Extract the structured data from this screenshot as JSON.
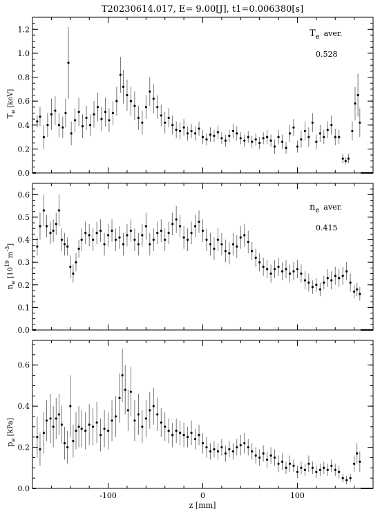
{
  "title": "T20230614.017, E= 9.00[J], t1=0.006380[s]",
  "xlabel": "z [mm]",
  "x_ticks": [
    "-100",
    "0",
    "100"
  ],
  "chart_data": [
    {
      "type": "scatter",
      "name": "Te",
      "ylabel_main": "T",
      "ylabel_sub": "e",
      "ylabel_unit": "[keV]",
      "ylim": [
        0.0,
        1.3
      ],
      "y_ticks": [
        "0.0",
        "0.2",
        "0.4",
        "0.6",
        "0.8",
        "1.0",
        "1.2"
      ],
      "annotation_main": "T",
      "annotation_sub": "e",
      "annotation_rest": "aver.",
      "annotation_value": "0.528",
      "points": [
        [
          -175,
          0.43,
          0.05
        ],
        [
          -172,
          0.47,
          0.08
        ],
        [
          -168,
          0.3,
          0.1
        ],
        [
          -164,
          0.4,
          0.1
        ],
        [
          -160,
          0.49,
          0.13
        ],
        [
          -156,
          0.52,
          0.12
        ],
        [
          -152,
          0.4,
          0.1
        ],
        [
          -148,
          0.38,
          0.09
        ],
        [
          -145,
          0.5,
          0.12
        ],
        [
          -142,
          0.92,
          0.3
        ],
        [
          -139,
          0.33,
          0.1
        ],
        [
          -135,
          0.44,
          0.1
        ],
        [
          -131,
          0.51,
          0.12
        ],
        [
          -127,
          0.39,
          0.1
        ],
        [
          -123,
          0.46,
          0.1
        ],
        [
          -119,
          0.4,
          0.09
        ],
        [
          -115,
          0.49,
          0.11
        ],
        [
          -111,
          0.55,
          0.12
        ],
        [
          -107,
          0.45,
          0.1
        ],
        [
          -103,
          0.51,
          0.12
        ],
        [
          -99,
          0.44,
          0.1
        ],
        [
          -95,
          0.5,
          0.1
        ],
        [
          -91,
          0.6,
          0.12
        ],
        [
          -87,
          0.82,
          0.15
        ],
        [
          -84,
          0.72,
          0.14
        ],
        [
          -80,
          0.65,
          0.13
        ],
        [
          -76,
          0.6,
          0.12
        ],
        [
          -72,
          0.56,
          0.12
        ],
        [
          -68,
          0.46,
          0.1
        ],
        [
          -64,
          0.42,
          0.1
        ],
        [
          -60,
          0.55,
          0.1
        ],
        [
          -56,
          0.68,
          0.12
        ],
        [
          -52,
          0.62,
          0.12
        ],
        [
          -48,
          0.55,
          0.1
        ],
        [
          -44,
          0.48,
          0.09
        ],
        [
          -40,
          0.42,
          0.09
        ],
        [
          -36,
          0.46,
          0.08
        ],
        [
          -32,
          0.4,
          0.08
        ],
        [
          -28,
          0.36,
          0.07
        ],
        [
          -24,
          0.35,
          0.07
        ],
        [
          -20,
          0.38,
          0.07
        ],
        [
          -16,
          0.33,
          0.06
        ],
        [
          -12,
          0.35,
          0.06
        ],
        [
          -8,
          0.33,
          0.06
        ],
        [
          -4,
          0.37,
          0.06
        ],
        [
          0,
          0.3,
          0.06
        ],
        [
          4,
          0.28,
          0.05
        ],
        [
          8,
          0.32,
          0.06
        ],
        [
          12,
          0.31,
          0.05
        ],
        [
          16,
          0.34,
          0.06
        ],
        [
          20,
          0.29,
          0.05
        ],
        [
          24,
          0.27,
          0.05
        ],
        [
          28,
          0.31,
          0.05
        ],
        [
          32,
          0.35,
          0.06
        ],
        [
          36,
          0.33,
          0.06
        ],
        [
          40,
          0.29,
          0.05
        ],
        [
          44,
          0.27,
          0.05
        ],
        [
          48,
          0.3,
          0.05
        ],
        [
          52,
          0.26,
          0.05
        ],
        [
          56,
          0.28,
          0.05
        ],
        [
          60,
          0.25,
          0.05
        ],
        [
          64,
          0.29,
          0.05
        ],
        [
          68,
          0.3,
          0.06
        ],
        [
          72,
          0.27,
          0.05
        ],
        [
          76,
          0.22,
          0.06
        ],
        [
          80,
          0.3,
          0.06
        ],
        [
          84,
          0.26,
          0.06
        ],
        [
          88,
          0.21,
          0.05
        ],
        [
          92,
          0.33,
          0.07
        ],
        [
          96,
          0.38,
          0.07
        ],
        [
          100,
          0.22,
          0.05
        ],
        [
          104,
          0.28,
          0.07
        ],
        [
          108,
          0.35,
          0.08
        ],
        [
          112,
          0.3,
          0.08
        ],
        [
          116,
          0.42,
          0.08
        ],
        [
          120,
          0.26,
          0.06
        ],
        [
          124,
          0.33,
          0.07
        ],
        [
          128,
          0.3,
          0.06
        ],
        [
          132,
          0.36,
          0.07
        ],
        [
          136,
          0.4,
          0.08
        ],
        [
          140,
          0.3,
          0.07
        ],
        [
          144,
          0.3,
          0.06
        ],
        [
          148,
          0.12,
          0.04
        ],
        [
          151,
          0.1,
          0.03
        ],
        [
          154,
          0.12,
          0.04
        ],
        [
          158,
          0.35,
          0.08
        ],
        [
          161,
          0.58,
          0.14
        ],
        [
          164,
          0.65,
          0.18
        ],
        [
          166,
          0.42,
          0.12
        ]
      ]
    },
    {
      "type": "scatter",
      "name": "ne",
      "ylabel_main": "n",
      "ylabel_sub": "e",
      "ylabel_unit_pre": "[10",
      "ylabel_unit_sup1": "19",
      "ylabel_unit_mid": "m",
      "ylabel_unit_sup2": "-3",
      "ylabel_unit_post": "]",
      "ylim": [
        0.0,
        0.65
      ],
      "y_ticks": [
        "0.0",
        "0.1",
        "0.2",
        "0.3",
        "0.4",
        "0.5",
        "0.6"
      ],
      "annotation_main": "n",
      "annotation_sub": "e",
      "annotation_rest": "aver.",
      "annotation_value": "0.415",
      "points": [
        [
          -175,
          0.37,
          0.04
        ],
        [
          -172,
          0.46,
          0.06
        ],
        [
          -168,
          0.53,
          0.07
        ],
        [
          -165,
          0.46,
          0.05
        ],
        [
          -161,
          0.43,
          0.05
        ],
        [
          -158,
          0.44,
          0.05
        ],
        [
          -155,
          0.47,
          0.05
        ],
        [
          -152,
          0.53,
          0.07
        ],
        [
          -149,
          0.4,
          0.05
        ],
        [
          -146,
          0.38,
          0.05
        ],
        [
          -143,
          0.37,
          0.04
        ],
        [
          -140,
          0.28,
          0.05
        ],
        [
          -137,
          0.25,
          0.04
        ],
        [
          -134,
          0.3,
          0.04
        ],
        [
          -131,
          0.36,
          0.04
        ],
        [
          -128,
          0.4,
          0.05
        ],
        [
          -124,
          0.43,
          0.05
        ],
        [
          -120,
          0.42,
          0.05
        ],
        [
          -116,
          0.4,
          0.05
        ],
        [
          -112,
          0.43,
          0.05
        ],
        [
          -108,
          0.44,
          0.05
        ],
        [
          -104,
          0.38,
          0.05
        ],
        [
          -100,
          0.42,
          0.05
        ],
        [
          -96,
          0.44,
          0.05
        ],
        [
          -92,
          0.4,
          0.05
        ],
        [
          -88,
          0.41,
          0.05
        ],
        [
          -84,
          0.38,
          0.05
        ],
        [
          -80,
          0.42,
          0.05
        ],
        [
          -76,
          0.44,
          0.05
        ],
        [
          -72,
          0.4,
          0.05
        ],
        [
          -68,
          0.38,
          0.05
        ],
        [
          -64,
          0.42,
          0.05
        ],
        [
          -60,
          0.46,
          0.06
        ],
        [
          -56,
          0.38,
          0.05
        ],
        [
          -52,
          0.4,
          0.05
        ],
        [
          -48,
          0.43,
          0.05
        ],
        [
          -44,
          0.44,
          0.05
        ],
        [
          -40,
          0.4,
          0.05
        ],
        [
          -36,
          0.43,
          0.05
        ],
        [
          -32,
          0.47,
          0.05
        ],
        [
          -28,
          0.49,
          0.06
        ],
        [
          -24,
          0.46,
          0.05
        ],
        [
          -20,
          0.41,
          0.05
        ],
        [
          -16,
          0.4,
          0.05
        ],
        [
          -12,
          0.43,
          0.05
        ],
        [
          -8,
          0.46,
          0.05
        ],
        [
          -4,
          0.48,
          0.05
        ],
        [
          0,
          0.44,
          0.05
        ],
        [
          4,
          0.4,
          0.05
        ],
        [
          8,
          0.38,
          0.05
        ],
        [
          12,
          0.36,
          0.05
        ],
        [
          16,
          0.4,
          0.05
        ],
        [
          20,
          0.38,
          0.05
        ],
        [
          24,
          0.35,
          0.05
        ],
        [
          28,
          0.34,
          0.05
        ],
        [
          32,
          0.38,
          0.05
        ],
        [
          36,
          0.37,
          0.05
        ],
        [
          40,
          0.41,
          0.05
        ],
        [
          44,
          0.42,
          0.05
        ],
        [
          48,
          0.39,
          0.05
        ],
        [
          52,
          0.35,
          0.04
        ],
        [
          56,
          0.32,
          0.04
        ],
        [
          60,
          0.3,
          0.04
        ],
        [
          64,
          0.28,
          0.04
        ],
        [
          68,
          0.27,
          0.04
        ],
        [
          72,
          0.25,
          0.04
        ],
        [
          76,
          0.27,
          0.04
        ],
        [
          80,
          0.28,
          0.04
        ],
        [
          84,
          0.26,
          0.04
        ],
        [
          88,
          0.27,
          0.04
        ],
        [
          92,
          0.25,
          0.04
        ],
        [
          96,
          0.26,
          0.04
        ],
        [
          100,
          0.27,
          0.04
        ],
        [
          104,
          0.25,
          0.04
        ],
        [
          108,
          0.22,
          0.04
        ],
        [
          112,
          0.21,
          0.04
        ],
        [
          116,
          0.19,
          0.03
        ],
        [
          120,
          0.2,
          0.03
        ],
        [
          124,
          0.18,
          0.03
        ],
        [
          128,
          0.21,
          0.03
        ],
        [
          132,
          0.23,
          0.04
        ],
        [
          136,
          0.22,
          0.04
        ],
        [
          140,
          0.24,
          0.04
        ],
        [
          144,
          0.23,
          0.04
        ],
        [
          148,
          0.24,
          0.04
        ],
        [
          152,
          0.26,
          0.04
        ],
        [
          156,
          0.21,
          0.04
        ],
        [
          160,
          0.17,
          0.03
        ],
        [
          163,
          0.18,
          0.03
        ],
        [
          166,
          0.16,
          0.03
        ]
      ]
    },
    {
      "type": "scatter",
      "name": "pe",
      "ylabel_main": "p",
      "ylabel_sub": "e",
      "ylabel_unit": "[kPa]",
      "ylim": [
        0.0,
        0.72
      ],
      "y_ticks": [
        "0.0",
        "0.2",
        "0.4",
        "0.6"
      ],
      "points": [
        [
          -175,
          0.25,
          0.1
        ],
        [
          -172,
          0.19,
          0.08
        ],
        [
          -168,
          0.27,
          0.1
        ],
        [
          -165,
          0.33,
          0.1
        ],
        [
          -161,
          0.34,
          0.12
        ],
        [
          -158,
          0.3,
          0.1
        ],
        [
          -155,
          0.34,
          0.1
        ],
        [
          -152,
          0.36,
          0.1
        ],
        [
          -149,
          0.31,
          0.09
        ],
        [
          -146,
          0.22,
          0.08
        ],
        [
          -143,
          0.2,
          0.08
        ],
        [
          -140,
          0.4,
          0.15
        ],
        [
          -137,
          0.23,
          0.08
        ],
        [
          -134,
          0.28,
          0.09
        ],
        [
          -131,
          0.3,
          0.1
        ],
        [
          -128,
          0.29,
          0.09
        ],
        [
          -124,
          0.28,
          0.09
        ],
        [
          -120,
          0.31,
          0.1
        ],
        [
          -116,
          0.3,
          0.09
        ],
        [
          -112,
          0.32,
          0.1
        ],
        [
          -108,
          0.26,
          0.08
        ],
        [
          -104,
          0.29,
          0.09
        ],
        [
          -100,
          0.28,
          0.09
        ],
        [
          -96,
          0.33,
          0.1
        ],
        [
          -92,
          0.35,
          0.1
        ],
        [
          -88,
          0.44,
          0.12
        ],
        [
          -85,
          0.55,
          0.13
        ],
        [
          -82,
          0.48,
          0.12
        ],
        [
          -79,
          0.38,
          0.1
        ],
        [
          -76,
          0.47,
          0.12
        ],
        [
          -72,
          0.33,
          0.1
        ],
        [
          -68,
          0.36,
          0.1
        ],
        [
          -64,
          0.3,
          0.08
        ],
        [
          -60,
          0.34,
          0.09
        ],
        [
          -56,
          0.38,
          0.09
        ],
        [
          -52,
          0.4,
          0.09
        ],
        [
          -48,
          0.36,
          0.08
        ],
        [
          -44,
          0.32,
          0.07
        ],
        [
          -40,
          0.3,
          0.07
        ],
        [
          -36,
          0.28,
          0.06
        ],
        [
          -32,
          0.26,
          0.06
        ],
        [
          -28,
          0.28,
          0.06
        ],
        [
          -24,
          0.27,
          0.06
        ],
        [
          -20,
          0.26,
          0.06
        ],
        [
          -16,
          0.25,
          0.05
        ],
        [
          -12,
          0.27,
          0.06
        ],
        [
          -8,
          0.24,
          0.05
        ],
        [
          -4,
          0.26,
          0.05
        ],
        [
          0,
          0.22,
          0.05
        ],
        [
          4,
          0.2,
          0.05
        ],
        [
          8,
          0.18,
          0.04
        ],
        [
          12,
          0.19,
          0.04
        ],
        [
          16,
          0.18,
          0.04
        ],
        [
          20,
          0.2,
          0.04
        ],
        [
          24,
          0.17,
          0.04
        ],
        [
          28,
          0.19,
          0.04
        ],
        [
          32,
          0.18,
          0.04
        ],
        [
          36,
          0.2,
          0.04
        ],
        [
          40,
          0.21,
          0.05
        ],
        [
          44,
          0.22,
          0.05
        ],
        [
          48,
          0.2,
          0.04
        ],
        [
          52,
          0.18,
          0.04
        ],
        [
          56,
          0.16,
          0.04
        ],
        [
          60,
          0.15,
          0.04
        ],
        [
          64,
          0.17,
          0.04
        ],
        [
          68,
          0.14,
          0.04
        ],
        [
          72,
          0.16,
          0.04
        ],
        [
          76,
          0.15,
          0.04
        ],
        [
          80,
          0.12,
          0.04
        ],
        [
          84,
          0.13,
          0.04
        ],
        [
          88,
          0.1,
          0.03
        ],
        [
          92,
          0.12,
          0.04
        ],
        [
          96,
          0.11,
          0.03
        ],
        [
          100,
          0.08,
          0.03
        ],
        [
          104,
          0.1,
          0.03
        ],
        [
          108,
          0.09,
          0.03
        ],
        [
          112,
          0.12,
          0.04
        ],
        [
          116,
          0.1,
          0.03
        ],
        [
          120,
          0.08,
          0.03
        ],
        [
          124,
          0.09,
          0.03
        ],
        [
          128,
          0.1,
          0.03
        ],
        [
          132,
          0.09,
          0.03
        ],
        [
          136,
          0.11,
          0.03
        ],
        [
          140,
          0.09,
          0.03
        ],
        [
          144,
          0.08,
          0.03
        ],
        [
          148,
          0.05,
          0.02
        ],
        [
          152,
          0.04,
          0.02
        ],
        [
          156,
          0.05,
          0.02
        ],
        [
          160,
          0.12,
          0.04
        ],
        [
          163,
          0.17,
          0.05
        ],
        [
          166,
          0.13,
          0.05
        ]
      ]
    }
  ],
  "xlim": [
    -180,
    180
  ]
}
